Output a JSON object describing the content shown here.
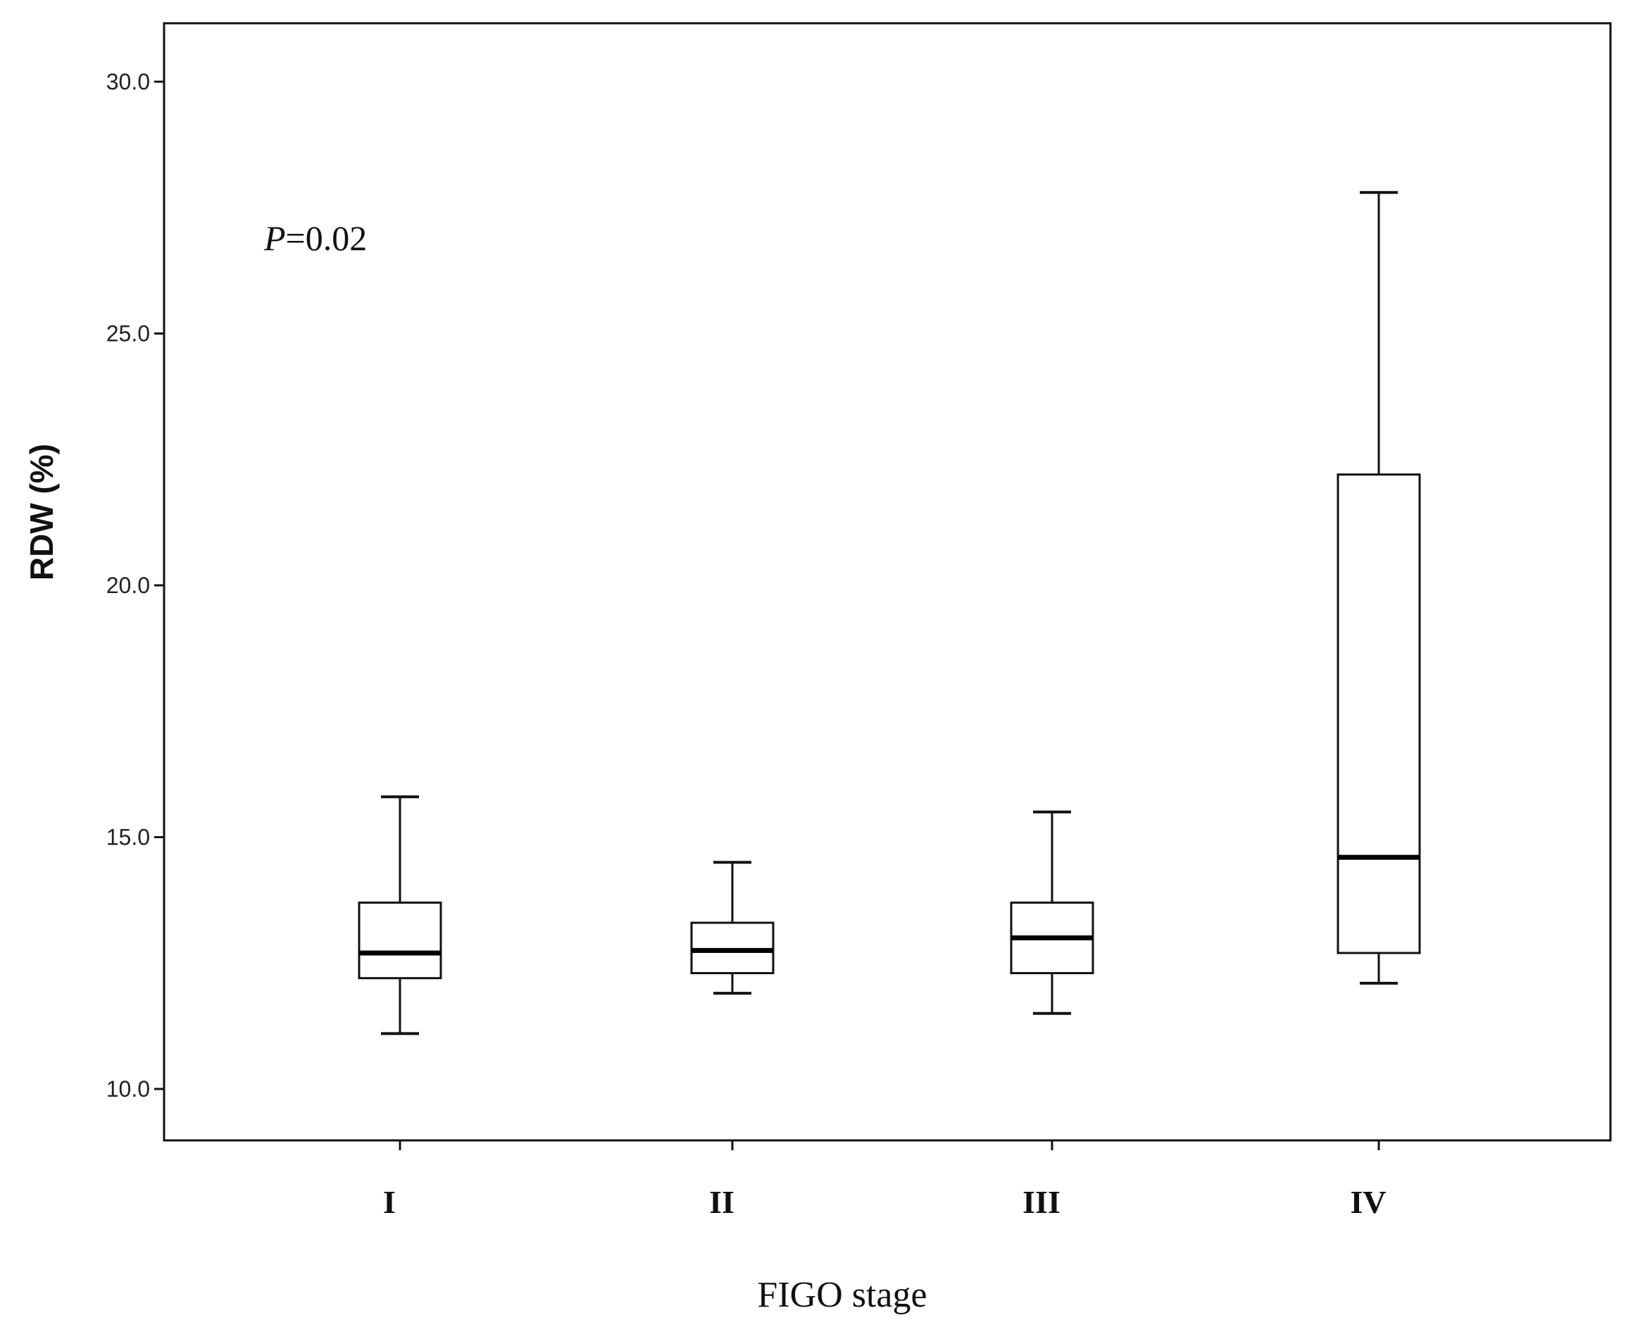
{
  "chart_data": {
    "type": "boxplot",
    "title": "",
    "xlabel": "FIGO stage",
    "ylabel": "RDW (%)",
    "ylim": [
      9.0,
      31.2
    ],
    "yticks": [
      "10.0",
      "15.0",
      "20.0",
      "25.0",
      "30.0"
    ],
    "grid": false,
    "categories": [
      "I",
      "II",
      "III",
      "IV"
    ],
    "boxes": [
      {
        "category": "I",
        "whisker_low": 11.1,
        "q1": 12.2,
        "median": 12.7,
        "q3": 13.7,
        "whisker_high": 15.8
      },
      {
        "category": "II",
        "whisker_low": 11.9,
        "q1": 12.3,
        "median": 12.75,
        "q3": 13.3,
        "whisker_high": 14.5
      },
      {
        "category": "III",
        "whisker_low": 11.5,
        "q1": 12.3,
        "median": 13.0,
        "q3": 13.7,
        "whisker_high": 15.5
      },
      {
        "category": "IV",
        "whisker_low": 12.1,
        "q1": 12.7,
        "median": 14.6,
        "q3": 22.2,
        "whisker_high": 27.8
      }
    ],
    "annotation": {
      "prefix": "P",
      "text": "=0.02"
    }
  }
}
